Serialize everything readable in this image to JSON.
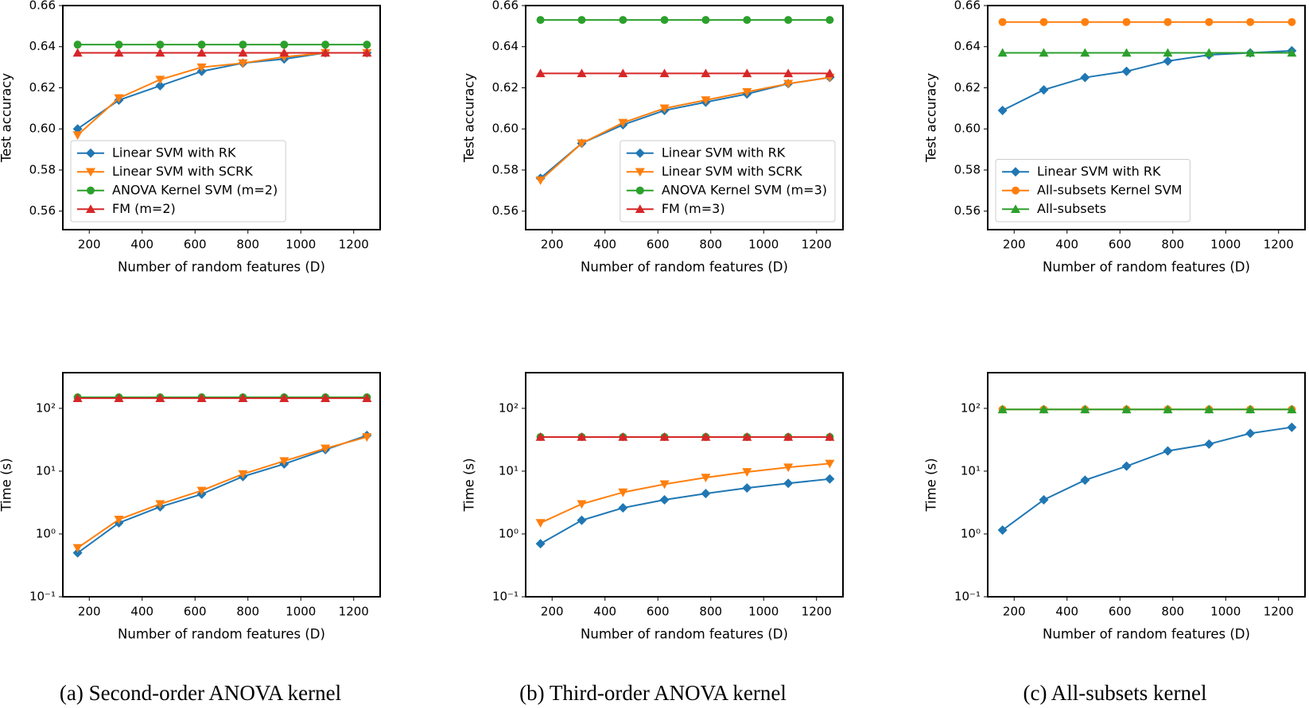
{
  "chart_data": [
    {
      "type": "line",
      "xlabel": "Number of random features (D)",
      "ylabel": "Test accuracy",
      "x": [
        156,
        312,
        468,
        625,
        781,
        937,
        1093,
        1250
      ],
      "xlim": [
        100,
        1300
      ],
      "xticks": [
        200,
        400,
        600,
        800,
        1000,
        1200
      ],
      "ylim": [
        0.551,
        0.66
      ],
      "yticks": [
        0.56,
        0.58,
        {
          "value": 0.6,
          "label": "0.60"
        },
        0.62,
        0.64,
        0.66
      ],
      "legend": "lower left",
      "series": [
        {
          "name": "Linear SVM with RK",
          "color": "#1f77b4",
          "marker": "D",
          "values": [
            0.6,
            0.614,
            0.621,
            0.628,
            0.632,
            0.634,
            0.637,
            0.637
          ]
        },
        {
          "name": "Linear SVM with SCRK",
          "color": "#ff7f0e",
          "marker": "v",
          "values": [
            0.597,
            0.615,
            0.624,
            0.63,
            0.632,
            0.635,
            0.637,
            0.637
          ]
        },
        {
          "name": "ANOVA Kernel SVM (m=2)",
          "color": "#2ca02c",
          "marker": "o",
          "values": [
            0.641,
            0.641,
            0.641,
            0.641,
            0.641,
            0.641,
            0.641,
            0.641
          ]
        },
        {
          "name": "FM (m=2)",
          "color": "#d62728",
          "marker": "^",
          "values": [
            0.637,
            0.637,
            0.637,
            0.637,
            0.637,
            0.637,
            0.637,
            0.637
          ]
        }
      ]
    },
    {
      "type": "line",
      "xlabel": "Number of random features (D)",
      "ylabel": "Test accuracy",
      "x": [
        156,
        312,
        468,
        625,
        781,
        937,
        1093,
        1250
      ],
      "xlim": [
        100,
        1300
      ],
      "xticks": [
        200,
        400,
        600,
        800,
        1000,
        1200
      ],
      "ylim": [
        0.551,
        0.66
      ],
      "yticks": [
        0.56,
        0.58,
        {
          "value": 0.6,
          "label": "0.60"
        },
        0.62,
        0.64,
        0.66
      ],
      "legend": "lower right",
      "series": [
        {
          "name": "Linear SVM with RK",
          "color": "#1f77b4",
          "marker": "D",
          "values": [
            0.576,
            0.593,
            0.602,
            0.609,
            0.613,
            0.617,
            0.622,
            0.625
          ]
        },
        {
          "name": "Linear SVM with SCRK",
          "color": "#ff7f0e",
          "marker": "v",
          "values": [
            0.575,
            0.593,
            0.603,
            0.61,
            0.614,
            0.618,
            0.622,
            0.625
          ]
        },
        {
          "name": "ANOVA Kernel SVM (m=3)",
          "color": "#2ca02c",
          "marker": "o",
          "values": [
            0.653,
            0.653,
            0.653,
            0.653,
            0.653,
            0.653,
            0.653,
            0.653
          ]
        },
        {
          "name": "FM (m=3)",
          "color": "#d62728",
          "marker": "^",
          "values": [
            0.627,
            0.627,
            0.627,
            0.627,
            0.627,
            0.627,
            0.627,
            0.627
          ]
        }
      ]
    },
    {
      "type": "line",
      "xlabel": "Number of random features (D)",
      "ylabel": "Test accuracy",
      "x": [
        156,
        312,
        468,
        625,
        781,
        937,
        1093,
        1250
      ],
      "xlim": [
        100,
        1300
      ],
      "xticks": [
        200,
        400,
        600,
        800,
        1000,
        1200
      ],
      "ylim": [
        0.551,
        0.66
      ],
      "yticks": [
        0.56,
        0.58,
        {
          "value": 0.6,
          "label": "0.60"
        },
        0.62,
        0.64,
        0.66
      ],
      "legend": "lower left",
      "series": [
        {
          "name": "Linear SVM with RK",
          "color": "#1f77b4",
          "marker": "D",
          "values": [
            0.609,
            0.619,
            0.625,
            0.628,
            0.633,
            0.636,
            0.637,
            0.638
          ]
        },
        {
          "name": "All-subsets Kernel SVM",
          "color": "#ff7f0e",
          "marker": "o",
          "values": [
            0.652,
            0.652,
            0.652,
            0.652,
            0.652,
            0.652,
            0.652,
            0.652
          ]
        },
        {
          "name": "All-subsets",
          "color": "#2ca02c",
          "marker": "^",
          "values": [
            0.637,
            0.637,
            0.637,
            0.637,
            0.637,
            0.637,
            0.637,
            0.637
          ]
        }
      ]
    },
    {
      "type": "line",
      "xlabel": "Number of random features (D)",
      "ylabel": "Time (s)",
      "yscale": "log",
      "x": [
        156,
        312,
        468,
        625,
        781,
        937,
        1093,
        1250
      ],
      "xlim": [
        100,
        1300
      ],
      "xticks": [
        200,
        400,
        600,
        800,
        1000,
        1200
      ],
      "ylim": [
        0.1,
        370
      ],
      "yticks": [
        {
          "value": 0.1,
          "label": "10⁻¹"
        },
        {
          "value": 1,
          "label": "10⁰"
        },
        {
          "value": 10,
          "label": "10¹"
        },
        {
          "value": 100,
          "label": "10²"
        }
      ],
      "series": [
        {
          "color": "#1f77b4",
          "marker": "D",
          "values": [
            0.5,
            1.5,
            2.7,
            4.3,
            8.2,
            13,
            22,
            37
          ]
        },
        {
          "color": "#ff7f0e",
          "marker": "v",
          "values": [
            0.6,
            1.7,
            3.0,
            4.9,
            9,
            14.5,
            23,
            35
          ]
        },
        {
          "color": "#2ca02c",
          "marker": "o",
          "values": [
            150,
            150,
            150,
            150,
            150,
            150,
            150,
            150
          ]
        },
        {
          "color": "#d62728",
          "marker": "^",
          "values": [
            145,
            145,
            145,
            145,
            145,
            145,
            145,
            145
          ]
        }
      ]
    },
    {
      "type": "line",
      "xlabel": "Number of random features (D)",
      "ylabel": "Time (s)",
      "yscale": "log",
      "x": [
        156,
        312,
        468,
        625,
        781,
        937,
        1093,
        1250
      ],
      "xlim": [
        100,
        1300
      ],
      "xticks": [
        200,
        400,
        600,
        800,
        1000,
        1200
      ],
      "ylim": [
        0.1,
        370
      ],
      "yticks": [
        {
          "value": 0.1,
          "label": "10⁻¹"
        },
        {
          "value": 1,
          "label": "10⁰"
        },
        {
          "value": 10,
          "label": "10¹"
        },
        {
          "value": 100,
          "label": "10²"
        }
      ],
      "series": [
        {
          "color": "#1f77b4",
          "marker": "D",
          "values": [
            0.7,
            1.65,
            2.6,
            3.5,
            4.4,
            5.4,
            6.4,
            7.5
          ]
        },
        {
          "color": "#ff7f0e",
          "marker": "v",
          "values": [
            1.5,
            3.0,
            4.6,
            6.2,
            7.9,
            9.7,
            11.5,
            13.2
          ]
        },
        {
          "color": "#2ca02c",
          "marker": "o",
          "values": [
            35,
            35,
            35,
            35,
            35,
            35,
            35,
            35
          ]
        },
        {
          "color": "#d62728",
          "marker": "^",
          "values": [
            35,
            35,
            35,
            35,
            35,
            35,
            35,
            35
          ]
        }
      ]
    },
    {
      "type": "line",
      "xlabel": "Number of random features (D)",
      "ylabel": "Time (s)",
      "yscale": "log",
      "x": [
        156,
        312,
        468,
        625,
        781,
        937,
        1093,
        1250
      ],
      "xlim": [
        100,
        1300
      ],
      "xticks": [
        200,
        400,
        600,
        800,
        1000,
        1200
      ],
      "ylim": [
        0.1,
        370
      ],
      "yticks": [
        {
          "value": 0.1,
          "label": "10⁻¹"
        },
        {
          "value": 1,
          "label": "10⁰"
        },
        {
          "value": 10,
          "label": "10¹"
        },
        {
          "value": 100,
          "label": "10²"
        }
      ],
      "series": [
        {
          "color": "#1f77b4",
          "marker": "D",
          "values": [
            1.15,
            3.5,
            7.2,
            12,
            21,
            27,
            40,
            50
          ]
        },
        {
          "color": "#ff7f0e",
          "marker": "o",
          "values": [
            96,
            96,
            96,
            96,
            96,
            96,
            96,
            96
          ]
        },
        {
          "color": "#2ca02c",
          "marker": "^",
          "values": [
            96,
            96,
            96,
            96,
            96,
            96,
            96,
            96
          ]
        }
      ]
    }
  ],
  "captions": [
    "(a) Second-order ANOVA kernel",
    "(b) Third-order ANOVA kernel",
    "(c) All-subsets kernel"
  ]
}
